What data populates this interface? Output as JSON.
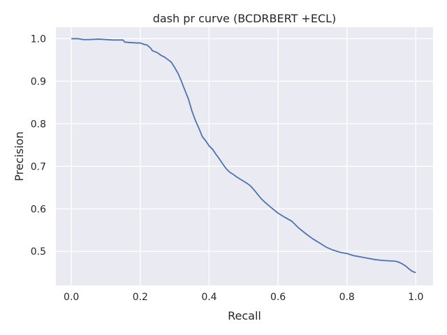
{
  "chart_data": {
    "type": "line",
    "title": "dash pr curve (BCDRBERT +ECL)",
    "xlabel": "Recall",
    "ylabel": "Precision",
    "xlim": [
      -0.045,
      1.05
    ],
    "ylim": [
      0.42,
      1.027
    ],
    "xticks": [
      "0.0",
      "0.2",
      "0.4",
      "0.6",
      "0.8",
      "1.0"
    ],
    "yticks": [
      "0.5",
      "0.6",
      "0.7",
      "0.8",
      "0.9",
      "1.0"
    ],
    "grid": true,
    "background": "#eaeaf2",
    "grid_color": "#ffffff",
    "series": [
      {
        "color": "#4c72b0",
        "x": [
          0.0,
          0.02,
          0.035,
          0.05,
          0.08,
          0.1,
          0.12,
          0.15,
          0.155,
          0.17,
          0.19,
          0.2,
          0.21,
          0.22,
          0.23,
          0.235,
          0.25,
          0.26,
          0.27,
          0.28,
          0.29,
          0.3,
          0.31,
          0.32,
          0.33,
          0.34,
          0.35,
          0.36,
          0.37,
          0.38,
          0.39,
          0.4,
          0.41,
          0.42,
          0.43,
          0.44,
          0.45,
          0.46,
          0.47,
          0.48,
          0.49,
          0.5,
          0.51,
          0.52,
          0.53,
          0.54,
          0.55,
          0.56,
          0.57,
          0.58,
          0.6,
          0.62,
          0.64,
          0.66,
          0.68,
          0.7,
          0.72,
          0.74,
          0.76,
          0.78,
          0.8,
          0.82,
          0.84,
          0.86,
          0.88,
          0.9,
          0.92,
          0.94,
          0.95,
          0.96,
          0.97,
          0.98,
          0.99,
          1.0
        ],
        "y": [
          1.0,
          1.0,
          0.998,
          0.998,
          0.999,
          0.998,
          0.997,
          0.997,
          0.992,
          0.991,
          0.99,
          0.99,
          0.987,
          0.985,
          0.978,
          0.972,
          0.967,
          0.961,
          0.957,
          0.951,
          0.945,
          0.932,
          0.918,
          0.899,
          0.878,
          0.858,
          0.83,
          0.808,
          0.79,
          0.77,
          0.76,
          0.748,
          0.74,
          0.728,
          0.717,
          0.705,
          0.694,
          0.686,
          0.681,
          0.675,
          0.67,
          0.665,
          0.66,
          0.654,
          0.645,
          0.635,
          0.625,
          0.617,
          0.61,
          0.603,
          0.59,
          0.58,
          0.571,
          0.555,
          0.542,
          0.53,
          0.52,
          0.51,
          0.503,
          0.498,
          0.495,
          0.49,
          0.487,
          0.484,
          0.481,
          0.479,
          0.478,
          0.477,
          0.475,
          0.471,
          0.466,
          0.459,
          0.453,
          0.45
        ]
      }
    ]
  }
}
